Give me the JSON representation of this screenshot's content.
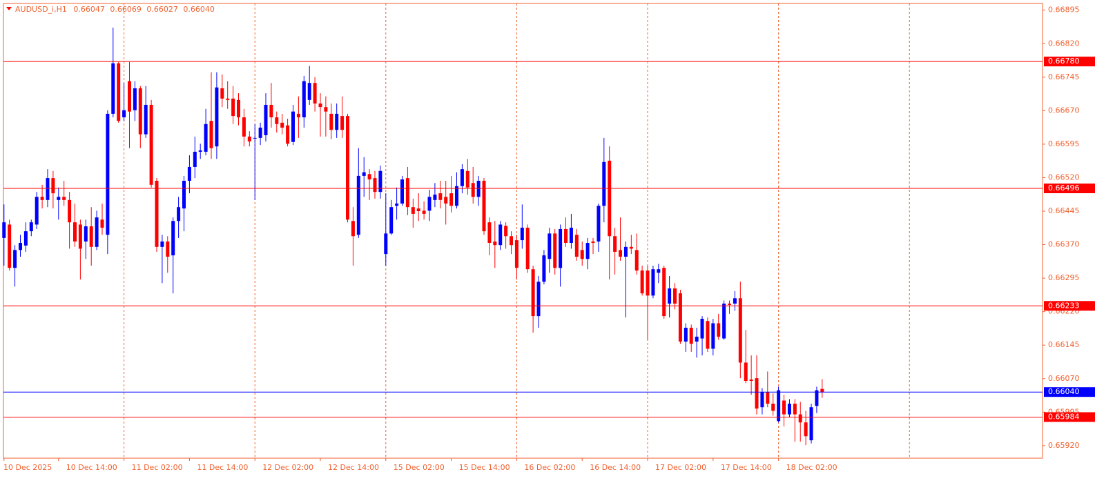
{
  "chart_data": {
    "type": "candlestick",
    "symbol": "AUDUSD_i,H1",
    "ohlc_text": [
      "0.66047",
      "0.66069",
      "0.66027",
      "0.66040"
    ],
    "bull_color": "#0000ff",
    "bear_color": "#ff0000",
    "axis_color": "#f0602e",
    "grid": true,
    "xlim": [
      -0.1,
      190.4
    ],
    "ylim": [
      0.65892,
      0.6691
    ],
    "yticks": [
      0.66895,
      {
        "value": 0.6682,
        "label": "0.66820"
      },
      0.66745,
      {
        "value": 0.6667,
        "label": "0.66670"
      },
      0.66595,
      {
        "value": 0.6652,
        "label": "0.66520"
      },
      0.66445,
      {
        "value": 0.6637,
        "label": "0.66370"
      },
      0.66295,
      {
        "value": 0.6622,
        "label": "0.66220"
      },
      0.66145,
      {
        "value": 0.6607,
        "label": "0.66070"
      },
      0.65995,
      {
        "value": 0.6592,
        "label": "0.65920"
      }
    ],
    "xticks": [
      {
        "value": 0,
        "label": "10 Dec 2025"
      },
      {
        "value": 10,
        "label": "10 Dec 14:00"
      },
      {
        "value": 22,
        "label": "11 Dec 02:00"
      },
      {
        "value": 34,
        "label": "11 Dec 14:00"
      },
      {
        "value": 46,
        "label": "12 Dec 02:00"
      },
      {
        "value": 58,
        "label": "12 Dec 14:00"
      },
      {
        "value": 70,
        "label": "15 Dec 02:00"
      },
      {
        "value": 82,
        "label": "15 Dec 14:00"
      },
      {
        "value": 94,
        "label": "16 Dec 02:00"
      },
      {
        "value": 106,
        "label": "16 Dec 14:00"
      },
      {
        "value": 118,
        "label": "17 Dec 02:00"
      },
      {
        "value": 130,
        "label": "17 Dec 14:00"
      },
      {
        "value": 142,
        "label": "18 Dec 02:00"
      }
    ],
    "xgrid": [
      22,
      46,
      70,
      94,
      118,
      142,
      166
    ],
    "levels": [
      {
        "value": 0.6678,
        "label": "0.66780",
        "color": "#ff0000"
      },
      {
        "value": 0.66496,
        "label": "0.66496",
        "color": "#ff0000"
      },
      {
        "value": 0.66233,
        "label": "0.66233",
        "color": "#ff0000"
      },
      {
        "value": 0.6604,
        "label": "0.66040",
        "color": "#0000ff"
      },
      {
        "value": 0.65984,
        "label": "0.65984",
        "color": "#ff0000"
      }
    ],
    "open": [
      0.66385,
      0.66415,
      0.66318,
      0.66358,
      0.66368,
      0.664,
      0.66415,
      0.66477,
      0.6647,
      0.66519,
      0.6647,
      0.66477,
      0.6647,
      0.6642,
      0.66415,
      0.66377,
      0.66411,
      0.66365,
      0.66426,
      0.66392,
      0.66663,
      0.66776,
      0.66655,
      0.66736,
      0.66671,
      0.6672,
      0.66617,
      0.66683,
      0.66513,
      0.66365,
      0.66377,
      0.66346,
      0.66423,
      0.66451,
      0.66513,
      0.66544,
      0.66578,
      0.66578,
      0.66647,
      0.6659,
      0.6672,
      0.66697,
      0.66697,
      0.66694,
      0.66655,
      0.66612,
      0.66609,
      0.66609,
      0.66615,
      0.66683,
      0.66655,
      0.66643,
      0.66637,
      0.666,
      0.66663,
      0.66655,
      0.66694,
      0.66732,
      0.66686,
      0.66678,
      0.66663,
      0.66627,
      0.66658,
      0.66658,
      0.66423,
      0.66392,
      0.66524,
      0.66528,
      0.66519,
      0.66488,
      0.66349,
      0.66395,
      0.66457,
      0.66462,
      0.66519,
      0.66454,
      0.66451,
      0.66446,
      0.66446,
      0.6647,
      0.66485,
      0.66477,
      0.66485,
      0.66457,
      0.66501,
      0.66535,
      0.66508,
      0.66477,
      0.66513,
      0.6642,
      0.66377,
      0.66369,
      0.66412,
      0.66389,
      0.6638,
      0.6638,
      0.66408,
      0.66315,
      0.6621,
      0.66287,
      0.66338,
      0.66395,
      0.66318,
      0.66405,
      0.66374,
      0.66392,
      0.66358,
      0.66338,
      0.66377,
      0.66377,
      0.66457,
      0.66558,
      0.66389,
      0.66358,
      0.66343,
      0.66365,
      0.66358,
      0.66312,
      0.66312,
      0.66256,
      0.66307,
      0.66318,
      0.66238,
      0.66272,
      0.66261,
      0.66153,
      0.66184,
      0.66153,
      0.6616,
      0.66199,
      0.66137,
      0.66194,
      0.6616,
      0.66238,
      0.66238,
      0.6625,
      0.66106,
      0.66068,
      0.66071,
      0.66006,
      0.6604,
      0.66014,
      0.65975,
      0.66021,
      0.6599,
      0.66014,
      0.6599,
      0.65972,
      0.65932,
      0.66009,
      0.66047
    ],
    "high": [
      0.6646,
      0.66426,
      0.66369,
      0.66392,
      0.6642,
      0.66426,
      0.66488,
      0.66504,
      0.66539,
      0.66535,
      0.66498,
      0.66513,
      0.66488,
      0.66462,
      0.66426,
      0.66426,
      0.66454,
      0.66446,
      0.66462,
      0.66671,
      0.66856,
      0.66779,
      0.66732,
      0.66779,
      0.66736,
      0.66725,
      0.66725,
      0.66694,
      0.66519,
      0.66392,
      0.66389,
      0.66431,
      0.66477,
      0.66524,
      0.6657,
      0.66612,
      0.66596,
      0.66674,
      0.66756,
      0.66756,
      0.66751,
      0.66736,
      0.66725,
      0.66709,
      0.66674,
      0.66624,
      0.6664,
      0.66643,
      0.66709,
      0.66732,
      0.66668,
      0.66663,
      0.66652,
      0.66683,
      0.66702,
      0.66748,
      0.6677,
      0.66745,
      0.66709,
      0.66702,
      0.66686,
      0.66686,
      0.66702,
      0.66663,
      0.66454,
      0.66586,
      0.66566,
      0.66539,
      0.66535,
      0.66547,
      0.66485,
      0.6647,
      0.66498,
      0.66524,
      0.66544,
      0.66473,
      0.66485,
      0.66467,
      0.66493,
      0.66508,
      0.66513,
      0.66513,
      0.66524,
      0.66532,
      0.6655,
      0.66562,
      0.66544,
      0.66524,
      0.66519,
      0.66431,
      0.66423,
      0.66423,
      0.6642,
      0.664,
      0.66392,
      0.6646,
      0.66415,
      0.66323,
      0.663,
      0.66358,
      0.66408,
      0.66405,
      0.66415,
      0.66431,
      0.66439,
      0.66405,
      0.66377,
      0.66385,
      0.66385,
      0.66462,
      0.66609,
      0.6659,
      0.66408,
      0.66431,
      0.66377,
      0.66392,
      0.66395,
      0.66323,
      0.66323,
      0.66323,
      0.66327,
      0.66323,
      0.663,
      0.66284,
      0.66269,
      0.66194,
      0.66191,
      0.66184,
      0.6621,
      0.66207,
      0.66204,
      0.66215,
      0.66245,
      0.66245,
      0.66266,
      0.66287,
      0.66179,
      0.66122,
      0.66122,
      0.66049,
      0.66086,
      0.66037,
      0.66052,
      0.66034,
      0.66024,
      0.66024,
      0.66018,
      0.65998,
      0.66014,
      0.66052,
      0.66069
    ],
    "low": [
      0.66323,
      0.66312,
      0.66276,
      0.66343,
      0.66354,
      0.66389,
      0.66405,
      0.66451,
      0.66454,
      0.66451,
      0.66426,
      0.66457,
      0.66361,
      0.66365,
      0.66292,
      0.66338,
      0.66323,
      0.66358,
      0.66392,
      0.66349,
      0.66655,
      0.66643,
      0.66647,
      0.66586,
      0.66647,
      0.66586,
      0.66609,
      0.66498,
      0.66354,
      0.66284,
      0.66307,
      0.66261,
      0.66385,
      0.664,
      0.66485,
      0.66519,
      0.66562,
      0.6657,
      0.66562,
      0.66562,
      0.66678,
      0.66674,
      0.6664,
      0.66637,
      0.6659,
      0.6659,
      0.6647,
      0.66593,
      0.66601,
      0.66632,
      0.66621,
      0.66617,
      0.6659,
      0.66593,
      0.66609,
      0.66632,
      0.66683,
      0.66668,
      0.66612,
      0.66612,
      0.66606,
      0.66609,
      0.66609,
      0.6642,
      0.66323,
      0.66385,
      0.66477,
      0.6647,
      0.66473,
      0.66473,
      0.66323,
      0.66392,
      0.66426,
      0.66457,
      0.66436,
      0.66408,
      0.66423,
      0.66426,
      0.66423,
      0.66454,
      0.66451,
      0.66415,
      0.66442,
      0.66451,
      0.66485,
      0.66482,
      0.66462,
      0.66457,
      0.66392,
      0.66346,
      0.66318,
      0.66358,
      0.66361,
      0.66349,
      0.66292,
      0.66361,
      0.66307,
      0.66173,
      0.66184,
      0.66281,
      0.66307,
      0.66303,
      0.66276,
      0.66365,
      0.66361,
      0.66334,
      0.66323,
      0.66315,
      0.66349,
      0.66354,
      0.6642,
      0.66292,
      0.66303,
      0.66334,
      0.66207,
      0.66349,
      0.66303,
      0.66256,
      0.66157,
      0.6625,
      0.66284,
      0.66204,
      0.66207,
      0.66225,
      0.66148,
      0.6613,
      0.6613,
      0.66117,
      0.66122,
      0.6613,
      0.66122,
      0.66157,
      0.66157,
      0.66215,
      0.66222,
      0.66071,
      0.6606,
      0.66034,
      0.6599,
      0.6599,
      0.66006,
      0.65987,
      0.65972,
      0.65963,
      0.65983,
      0.65929,
      0.65929,
      0.65921,
      0.65925,
      0.65993,
      0.66027
    ],
    "close": [
      0.6642,
      0.66318,
      0.66358,
      0.66374,
      0.664,
      0.6642,
      0.66477,
      0.6647,
      0.66519,
      0.66485,
      0.66477,
      0.6647,
      0.6642,
      0.66377,
      0.66361,
      0.66411,
      0.66365,
      0.66431,
      0.66408,
      0.66663,
      0.66776,
      0.66647,
      0.66671,
      0.66668,
      0.6672,
      0.66617,
      0.66683,
      0.66504,
      0.66365,
      0.66377,
      0.66343,
      0.66423,
      0.66454,
      0.66513,
      0.66544,
      0.66578,
      0.66581,
      0.6664,
      0.66586,
      0.66722,
      0.66697,
      0.66694,
      0.66658,
      0.66655,
      0.66612,
      0.66601,
      0.66609,
      0.66632,
      0.66683,
      0.66655,
      0.6664,
      0.66632,
      0.66596,
      0.66668,
      0.66655,
      0.66736,
      0.66732,
      0.66686,
      0.66678,
      0.66668,
      0.66627,
      0.66663,
      0.66627,
      0.66426,
      0.66389,
      0.66524,
      0.66532,
      0.66516,
      0.66488,
      0.66535,
      0.66395,
      0.66454,
      0.66462,
      0.66516,
      0.66454,
      0.66439,
      0.66445,
      0.66439,
      0.66477,
      0.66482,
      0.6647,
      0.66462,
      0.66457,
      0.66501,
      0.66539,
      0.66498,
      0.66477,
      0.66513,
      0.664,
      0.66374,
      0.66369,
      0.66415,
      0.66389,
      0.66369,
      0.66318,
      0.66408,
      0.66315,
      0.6621,
      0.66287,
      0.66346,
      0.66395,
      0.66318,
      0.66405,
      0.66374,
      0.66408,
      0.66343,
      0.66338,
      0.66374,
      0.66374,
      0.66457,
      0.66555,
      0.66389,
      0.66354,
      0.66343,
      0.66365,
      0.66361,
      0.66312,
      0.66261,
      0.66256,
      0.66315,
      0.66315,
      0.6621,
      0.66272,
      0.66238,
      0.66153,
      0.66184,
      0.66148,
      0.66164,
      0.66204,
      0.66137,
      0.66194,
      0.66164,
      0.66238,
      0.66235,
      0.6625,
      0.66106,
      0.66065,
      0.66065,
      0.66003,
      0.6604,
      0.66014,
      0.65998,
      0.66044,
      0.6599,
      0.66014,
      0.6599,
      0.65972,
      0.65941,
      0.66006,
      0.66044,
      0.6604
    ]
  }
}
